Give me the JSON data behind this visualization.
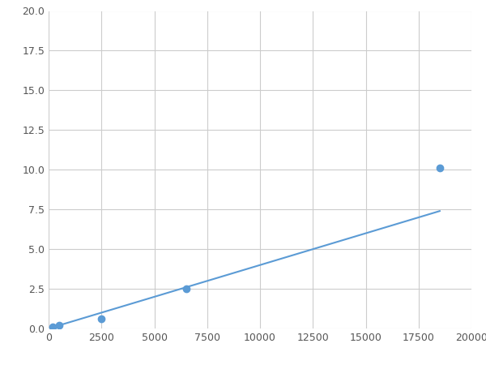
{
  "x": [
    200,
    500,
    2500,
    6500,
    18500
  ],
  "y": [
    0.1,
    0.2,
    0.6,
    2.5,
    10.1
  ],
  "line_color": "#5b9bd5",
  "marker_color": "#5b9bd5",
  "marker_size": 6,
  "line_width": 1.5,
  "xlim": [
    0,
    20000
  ],
  "ylim": [
    0,
    20.0
  ],
  "xticks": [
    0,
    2500,
    5000,
    7500,
    10000,
    12500,
    15000,
    17500,
    20000
  ],
  "yticks": [
    0.0,
    2.5,
    5.0,
    7.5,
    10.0,
    12.5,
    15.0,
    17.5,
    20.0
  ],
  "grid_color": "#cccccc",
  "background_color": "#ffffff",
  "figure_bg": "#ffffff"
}
